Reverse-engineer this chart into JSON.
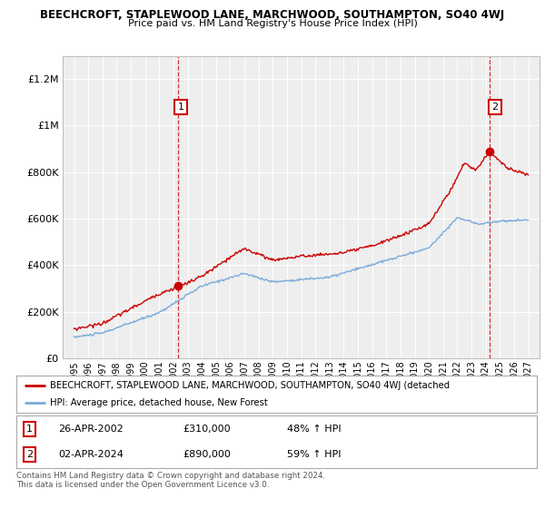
{
  "title": "BEECHCROFT, STAPLEWOOD LANE, MARCHWOOD, SOUTHAMPTON, SO40 4WJ",
  "subtitle": "Price paid vs. HM Land Registry's House Price Index (HPI)",
  "red_label": "BEECHCROFT, STAPLEWOOD LANE, MARCHWOOD, SOUTHAMPTON, SO40 4WJ (detached",
  "blue_label": "HPI: Average price, detached house, New Forest",
  "annotation1": {
    "num": "1",
    "date": "26-APR-2002",
    "price": "£310,000",
    "pct": "48% ↑ HPI"
  },
  "annotation2": {
    "num": "2",
    "date": "02-APR-2024",
    "price": "£890,000",
    "pct": "59% ↑ HPI"
  },
  "copyright": "Contains HM Land Registry data © Crown copyright and database right 2024.\nThis data is licensed under the Open Government Licence v3.0.",
  "ylim": [
    0,
    1300000
  ],
  "yticks": [
    0,
    200000,
    400000,
    600000,
    800000,
    1000000,
    1200000
  ],
  "ytick_labels": [
    "£0",
    "£200K",
    "£400K",
    "£600K",
    "£800K",
    "£1M",
    "£1.2M"
  ],
  "bg_color": "#ffffff",
  "plot_bg_color": "#eeeeee",
  "red_color": "#cc0000",
  "blue_color": "#7aabdb",
  "grid_color": "#ffffff",
  "sale1_year": 2002.32,
  "sale1_price": 310000,
  "sale2_year": 2024.25,
  "sale2_price": 890000
}
